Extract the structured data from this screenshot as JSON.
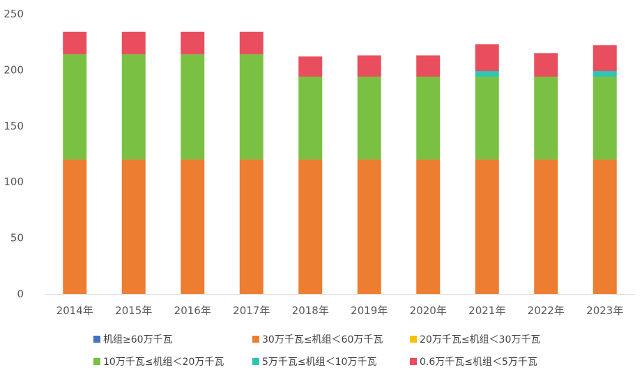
{
  "chart_data": {
    "type": "bar",
    "stacked": true,
    "categories": [
      "2014年",
      "2015年",
      "2016年",
      "2017年",
      "2018年",
      "2019年",
      "2020年",
      "2021年",
      "2022年",
      "2023年"
    ],
    "series": [
      {
        "name": "机组≥60万千瓦",
        "color": "#4472C4",
        "values": [
          0,
          0,
          0,
          0,
          0,
          0,
          0,
          0,
          0,
          0
        ]
      },
      {
        "name": "30万千瓦≤机组＜60万千瓦",
        "color": "#ED7D31",
        "values": [
          120,
          120,
          120,
          120,
          120,
          120,
          120,
          120,
          120,
          120
        ]
      },
      {
        "name": "20万千瓦≤机组＜30万千瓦",
        "color": "#FFC000",
        "values": [
          0,
          0,
          0,
          0,
          0,
          0,
          0,
          0,
          0,
          0
        ]
      },
      {
        "name": "10万千瓦≤机组＜20万千瓦",
        "color": "#7AC143",
        "values": [
          94,
          94,
          94,
          94,
          74,
          74,
          74,
          74,
          74,
          74
        ]
      },
      {
        "name": "5万千瓦≤机组＜10万千瓦",
        "color": "#2EC4B6",
        "values": [
          0,
          0,
          0,
          0,
          0,
          0,
          0,
          5,
          0,
          5
        ]
      },
      {
        "name": "0.6万千瓦≤机组＜5万千瓦",
        "color": "#E84E5E",
        "values": [
          20,
          20,
          20,
          20,
          18,
          19,
          19,
          24,
          21,
          23
        ]
      }
    ],
    "yticks": [
      0,
      50,
      100,
      150,
      200,
      250
    ],
    "ylim": [
      0,
      250
    ],
    "grid": false,
    "legend_position": "bottom"
  }
}
